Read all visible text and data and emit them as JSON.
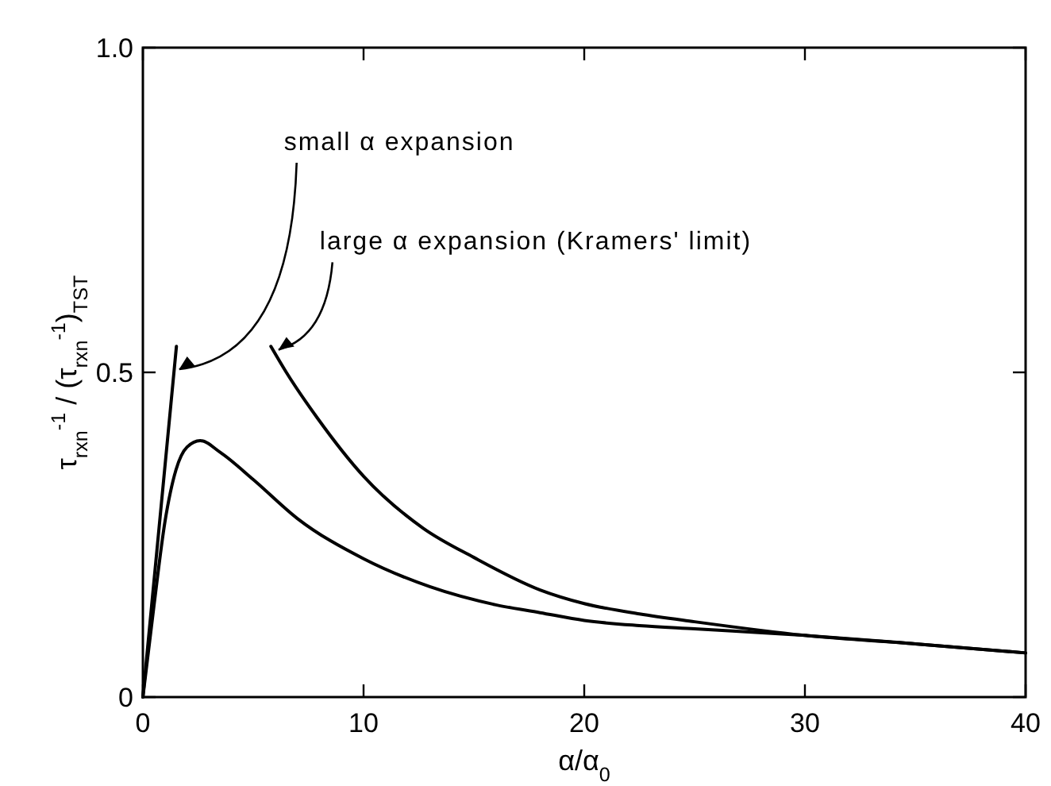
{
  "chart_data": {
    "type": "line",
    "xlabel": "α/α$_{0}$",
    "ylabel": "τ$_{rxn}$$^{-1}$ / (τ$_{rxn}$$^{-1}$)$_{TST}$",
    "xlim": [
      0,
      40
    ],
    "ylim": [
      0,
      1
    ],
    "xticks": [
      0,
      10,
      20,
      30,
      40
    ],
    "yticks": [
      0,
      0.5,
      {
        "value": 1,
        "label": "1.0"
      }
    ],
    "grid": false,
    "marker": "none",
    "line_style": "solid",
    "annotations": [
      {
        "text": "small α expansion",
        "x": 1.5,
        "y": 0.5
      },
      {
        "text": "large α expansion (Kramers' limit)",
        "x": 6,
        "y": 0.53
      }
    ],
    "series": [
      {
        "color": "#000000",
        "x": [
          0,
          0.5,
          1,
          1.5,
          2,
          2.6,
          3.5,
          5,
          7,
          10,
          13,
          16,
          18,
          20,
          22.5,
          25,
          30,
          35,
          40
        ],
        "values": [
          0,
          0.14,
          0.27,
          0.35,
          0.385,
          0.395,
          0.377,
          0.335,
          0.275,
          0.213,
          0.17,
          0.142,
          0.13,
          0.118,
          0.11,
          0.105,
          0.095,
          0.082,
          0.068
        ]
      },
      {
        "color": "#000000",
        "x": [
          0,
          1.52
        ],
        "values": [
          0,
          0.54
        ]
      },
      {
        "color": "#000000",
        "x": [
          5.8,
          6.5,
          7.9,
          10,
          12.7,
          15,
          18,
          20,
          22.5,
          25,
          30,
          35,
          40
        ],
        "values": [
          0.54,
          0.5,
          0.43,
          0.34,
          0.26,
          0.215,
          0.165,
          0.144,
          0.128,
          0.116,
          0.095,
          0.082,
          0.068
        ]
      }
    ]
  }
}
